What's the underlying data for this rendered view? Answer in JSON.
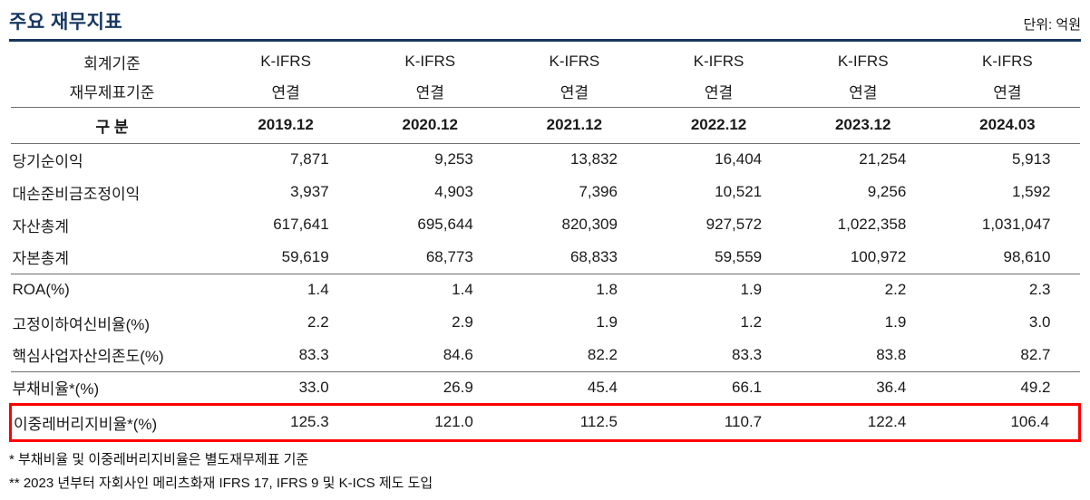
{
  "page": {
    "title": "주요 재무지표",
    "unit_label": "단위: 억원"
  },
  "table": {
    "header": {
      "accounting_standard_label": "회계기준",
      "statement_basis_label": "재무제표기준",
      "category_label": "구 분",
      "accounting_standard": [
        "K-IFRS",
        "K-IFRS",
        "K-IFRS",
        "K-IFRS",
        "K-IFRS",
        "K-IFRS"
      ],
      "statement_basis": [
        "연결",
        "연결",
        "연결",
        "연결",
        "연결",
        "연결"
      ],
      "periods": [
        "2019.12",
        "2020.12",
        "2021.12",
        "2022.12",
        "2023.12",
        "2024.03"
      ]
    },
    "rows": [
      {
        "label": "당기순이익",
        "values": [
          "7,871",
          "9,253",
          "13,832",
          "16,404",
          "21,254",
          "5,913"
        ]
      },
      {
        "label": "대손준비금조정이익",
        "values": [
          "3,937",
          "4,903",
          "7,396",
          "10,521",
          "9,256",
          "1,592"
        ]
      },
      {
        "label": "자산총계",
        "values": [
          "617,641",
          "695,644",
          "820,309",
          "927,572",
          "1,022,358",
          "1,031,047"
        ]
      },
      {
        "label": "자본총계",
        "values": [
          "59,619",
          "68,773",
          "68,833",
          "59,559",
          "100,972",
          "98,610"
        ]
      },
      {
        "label": "ROA(%)",
        "values": [
          "1.4",
          "1.4",
          "1.8",
          "1.9",
          "2.2",
          "2.3"
        ]
      },
      {
        "label": "고정이하여신비율(%)",
        "values": [
          "2.2",
          "2.9",
          "1.9",
          "1.2",
          "1.9",
          "3.0"
        ]
      },
      {
        "label": "핵심사업자산의존도(%)",
        "values": [
          "83.3",
          "84.6",
          "82.2",
          "83.3",
          "83.8",
          "82.7"
        ]
      },
      {
        "label": "부채비율*(%)",
        "values": [
          "33.0",
          "26.9",
          "45.4",
          "66.1",
          "36.4",
          "49.2"
        ]
      },
      {
        "label": "이중레버리지비율*(%)",
        "values": [
          "125.3",
          "121.0",
          "112.5",
          "110.7",
          "122.4",
          "106.4"
        ],
        "highlighted": true
      }
    ],
    "footnotes": [
      "* 부채비율 및 이중레버리지비율은 별도재무제표 기준",
      "** 2023 년부터 자회사인 메리츠화재 IFRS 17, IFRS 9 및 K-ICS 제도 도입"
    ]
  },
  "colors": {
    "title_navy": "#17375E",
    "highlight_red": "#FF0000",
    "rule_gray": "#6F6F6F"
  }
}
